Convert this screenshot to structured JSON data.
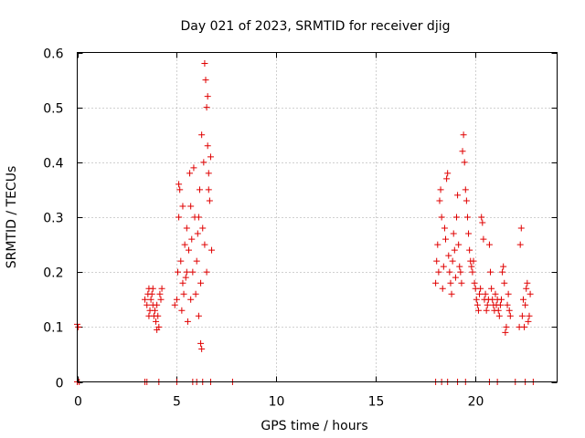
{
  "chart_data": {
    "type": "scatter",
    "title": "Day 021 of 2023, SRMTID for receiver djig",
    "xlabel": "GPS time / hours",
    "ylabel": "SRMTID / TECUs",
    "xlim": [
      0,
      24.1
    ],
    "ylim": [
      0,
      0.6
    ],
    "xticks": [
      0,
      5,
      10,
      15,
      20
    ],
    "xtick_labels": [
      "0",
      "5",
      "10",
      "15",
      "20"
    ],
    "yticks": [
      0,
      0.1,
      0.2,
      0.3,
      0.4,
      0.5,
      0.6
    ],
    "ytick_labels": [
      "0",
      "0.1",
      "0.2",
      "0.3",
      "0.4",
      "0.5",
      "0.6"
    ],
    "grid": true,
    "marker": "+",
    "series": [
      {
        "name": "SRMTID",
        "color": "#e00000",
        "points": [
          [
            0.0,
            0.105
          ],
          [
            0.05,
            0.1
          ],
          [
            0.1,
            0.0
          ],
          [
            0.0,
            0.0
          ],
          [
            3.4,
            0.15
          ],
          [
            3.5,
            0.14
          ],
          [
            3.55,
            0.16
          ],
          [
            3.6,
            0.17
          ],
          [
            3.65,
            0.13
          ],
          [
            3.7,
            0.15
          ],
          [
            3.75,
            0.16
          ],
          [
            3.8,
            0.14
          ],
          [
            3.85,
            0.12
          ],
          [
            3.9,
            0.13
          ],
          [
            3.95,
            0.11
          ],
          [
            4.0,
            0.14
          ],
          [
            4.05,
            0.12
          ],
          [
            4.1,
            0.1
          ],
          [
            4.15,
            0.16
          ],
          [
            4.2,
            0.15
          ],
          [
            4.25,
            0.17
          ],
          [
            3.6,
            0.12
          ],
          [
            3.8,
            0.17
          ],
          [
            4.0,
            0.095
          ],
          [
            3.5,
            0.0
          ],
          [
            3.4,
            0.0
          ],
          [
            4.1,
            0.0
          ],
          [
            5.0,
            0.15
          ],
          [
            5.05,
            0.2
          ],
          [
            5.1,
            0.3
          ],
          [
            5.15,
            0.35
          ],
          [
            5.2,
            0.22
          ],
          [
            5.25,
            0.13
          ],
          [
            5.3,
            0.18
          ],
          [
            5.35,
            0.16
          ],
          [
            5.4,
            0.25
          ],
          [
            5.45,
            0.19
          ],
          [
            5.5,
            0.28
          ],
          [
            5.55,
            0.11
          ],
          [
            5.6,
            0.24
          ],
          [
            5.65,
            0.38
          ],
          [
            5.7,
            0.32
          ],
          [
            5.75,
            0.26
          ],
          [
            5.8,
            0.2
          ],
          [
            5.85,
            0.39
          ],
          [
            5.9,
            0.3
          ],
          [
            5.95,
            0.16
          ],
          [
            6.0,
            0.22
          ],
          [
            6.05,
            0.27
          ],
          [
            6.1,
            0.12
          ],
          [
            6.15,
            0.35
          ],
          [
            6.2,
            0.18
          ],
          [
            6.25,
            0.45
          ],
          [
            6.3,
            0.28
          ],
          [
            6.35,
            0.4
          ],
          [
            6.4,
            0.58
          ],
          [
            6.45,
            0.55
          ],
          [
            6.5,
            0.5
          ],
          [
            6.55,
            0.43
          ],
          [
            6.6,
            0.38
          ],
          [
            6.65,
            0.33
          ],
          [
            6.7,
            0.41
          ],
          [
            6.75,
            0.24
          ],
          [
            6.2,
            0.07
          ],
          [
            6.25,
            0.06
          ],
          [
            5.0,
            0.0
          ],
          [
            5.8,
            0.0
          ],
          [
            6.0,
            0.0
          ],
          [
            6.3,
            0.0
          ],
          [
            6.7,
            0.0
          ],
          [
            7.8,
            0.0
          ],
          [
            4.9,
            0.14
          ],
          [
            5.1,
            0.36
          ],
          [
            5.3,
            0.32
          ],
          [
            5.5,
            0.2
          ],
          [
            5.7,
            0.15
          ],
          [
            6.1,
            0.3
          ],
          [
            6.4,
            0.25
          ],
          [
            6.5,
            0.2
          ],
          [
            6.6,
            0.35
          ],
          [
            6.55,
            0.52
          ],
          [
            18.0,
            0.18
          ],
          [
            18.05,
            0.22
          ],
          [
            18.1,
            0.25
          ],
          [
            18.15,
            0.2
          ],
          [
            18.2,
            0.33
          ],
          [
            18.25,
            0.35
          ],
          [
            18.3,
            0.3
          ],
          [
            18.35,
            0.17
          ],
          [
            18.4,
            0.21
          ],
          [
            18.45,
            0.28
          ],
          [
            18.5,
            0.26
          ],
          [
            18.55,
            0.37
          ],
          [
            18.6,
            0.38
          ],
          [
            18.65,
            0.23
          ],
          [
            18.7,
            0.2
          ],
          [
            18.75,
            0.18
          ],
          [
            18.8,
            0.16
          ],
          [
            18.85,
            0.22
          ],
          [
            18.9,
            0.27
          ],
          [
            18.95,
            0.24
          ],
          [
            19.0,
            0.19
          ],
          [
            19.05,
            0.3
          ],
          [
            19.1,
            0.34
          ],
          [
            19.15,
            0.25
          ],
          [
            19.2,
            0.21
          ],
          [
            19.25,
            0.2
          ],
          [
            19.3,
            0.18
          ],
          [
            19.35,
            0.42
          ],
          [
            19.4,
            0.45
          ],
          [
            19.45,
            0.4
          ],
          [
            19.5,
            0.35
          ],
          [
            19.55,
            0.33
          ],
          [
            19.6,
            0.3
          ],
          [
            19.65,
            0.27
          ],
          [
            19.7,
            0.24
          ],
          [
            19.75,
            0.22
          ],
          [
            19.8,
            0.21
          ],
          [
            19.85,
            0.2
          ],
          [
            19.9,
            0.22
          ],
          [
            19.95,
            0.18
          ],
          [
            20.0,
            0.17
          ],
          [
            20.05,
            0.15
          ],
          [
            20.1,
            0.14
          ],
          [
            20.15,
            0.13
          ],
          [
            20.2,
            0.16
          ],
          [
            20.25,
            0.17
          ],
          [
            20.3,
            0.3
          ],
          [
            20.35,
            0.29
          ],
          [
            20.4,
            0.26
          ],
          [
            20.45,
            0.15
          ],
          [
            20.5,
            0.16
          ],
          [
            20.55,
            0.13
          ],
          [
            20.6,
            0.14
          ],
          [
            20.65,
            0.15
          ],
          [
            20.7,
            0.25
          ],
          [
            20.75,
            0.2
          ],
          [
            20.8,
            0.17
          ],
          [
            20.85,
            0.15
          ],
          [
            20.9,
            0.14
          ],
          [
            20.95,
            0.13
          ],
          [
            21.0,
            0.16
          ],
          [
            21.05,
            0.14
          ],
          [
            21.1,
            0.15
          ],
          [
            21.15,
            0.13
          ],
          [
            21.2,
            0.12
          ],
          [
            21.25,
            0.14
          ],
          [
            21.3,
            0.15
          ],
          [
            21.35,
            0.2
          ],
          [
            21.4,
            0.21
          ],
          [
            21.45,
            0.18
          ],
          [
            21.5,
            0.09
          ],
          [
            21.55,
            0.1
          ],
          [
            21.6,
            0.14
          ],
          [
            21.65,
            0.16
          ],
          [
            21.7,
            0.13
          ],
          [
            21.75,
            0.12
          ],
          [
            22.2,
            0.1
          ],
          [
            22.25,
            0.25
          ],
          [
            22.3,
            0.28
          ],
          [
            22.35,
            0.12
          ],
          [
            22.4,
            0.15
          ],
          [
            22.45,
            0.1
          ],
          [
            22.5,
            0.14
          ],
          [
            22.55,
            0.17
          ],
          [
            22.6,
            0.18
          ],
          [
            22.65,
            0.11
          ],
          [
            22.7,
            0.12
          ],
          [
            22.75,
            0.16
          ],
          [
            18.0,
            0.0
          ],
          [
            18.3,
            0.0
          ],
          [
            18.6,
            0.0
          ],
          [
            19.1,
            0.0
          ],
          [
            19.5,
            0.0
          ],
          [
            20.7,
            0.0
          ],
          [
            21.1,
            0.0
          ],
          [
            22.0,
            0.0
          ],
          [
            22.5,
            0.0
          ],
          [
            22.9,
            0.0
          ]
        ]
      }
    ]
  }
}
